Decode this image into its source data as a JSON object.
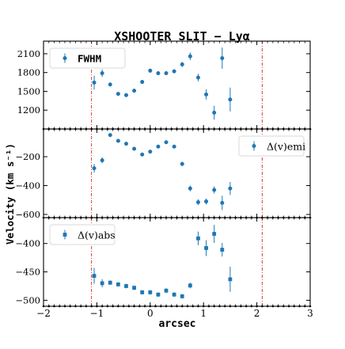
{
  "chart_data": {
    "type": "scatter",
    "title": "XSHOOTER SLIT − Lyα",
    "xlabel": "arcsec",
    "ylabel": "Velocity (km s⁻¹)",
    "xlim": [
      -2,
      3
    ],
    "xticks": [
      -2,
      -1,
      0,
      1,
      2,
      3
    ],
    "xtick_labels": [
      "−2",
      "−1",
      "0",
      "1",
      "2",
      "3"
    ],
    "vlines": [
      -1.1,
      2.1
    ],
    "colors": {
      "marker": "#1f77b4",
      "vline": "#d62728"
    },
    "panels": [
      {
        "legend": "FWHM",
        "legend_position": "top-left",
        "marker": "circle",
        "ylim": [
          950,
          2200
        ],
        "yticks": [
          1200,
          1500,
          1800,
          2100
        ],
        "ytick_labels": [
          "1200",
          "1500",
          "1800",
          "2100"
        ],
        "points": [
          {
            "x": -1.05,
            "y": 1640,
            "err": 110
          },
          {
            "x": -0.9,
            "y": 1790,
            "err": 60
          },
          {
            "x": -0.75,
            "y": 1610,
            "err": 30
          },
          {
            "x": -0.6,
            "y": 1460,
            "err": 30
          },
          {
            "x": -0.45,
            "y": 1440,
            "err": 30
          },
          {
            "x": -0.3,
            "y": 1510,
            "err": 30
          },
          {
            "x": -0.15,
            "y": 1650,
            "err": 30
          },
          {
            "x": 0.0,
            "y": 1830,
            "err": 30
          },
          {
            "x": 0.15,
            "y": 1790,
            "err": 30
          },
          {
            "x": 0.3,
            "y": 1790,
            "err": 30
          },
          {
            "x": 0.45,
            "y": 1820,
            "err": 30
          },
          {
            "x": 0.6,
            "y": 1930,
            "err": 40
          },
          {
            "x": 0.75,
            "y": 2060,
            "err": 60
          },
          {
            "x": 0.9,
            "y": 1720,
            "err": 60
          },
          {
            "x": 1.05,
            "y": 1450,
            "err": 80
          },
          {
            "x": 1.2,
            "y": 1160,
            "err": 110
          },
          {
            "x": 1.35,
            "y": 2030,
            "err": 170
          },
          {
            "x": 1.5,
            "y": 1370,
            "err": 190
          }
        ]
      },
      {
        "legend": "Δ(v)emi",
        "legend_position": "top-right",
        "marker": "circle",
        "ylim": [
          -600,
          -30
        ],
        "yticks": [
          -600,
          -400,
          -200
        ],
        "ytick_labels": [
          "−600",
          "−400",
          "−200"
        ],
        "points": [
          {
            "x": -1.05,
            "y": -280,
            "err": 30
          },
          {
            "x": -0.9,
            "y": -225,
            "err": 20
          },
          {
            "x": -0.75,
            "y": -50,
            "err": 12
          },
          {
            "x": -0.6,
            "y": -90,
            "err": 12
          },
          {
            "x": -0.45,
            "y": -110,
            "err": 12
          },
          {
            "x": -0.3,
            "y": -145,
            "err": 12
          },
          {
            "x": -0.15,
            "y": -185,
            "err": 12
          },
          {
            "x": 0.0,
            "y": -165,
            "err": 12
          },
          {
            "x": 0.15,
            "y": -130,
            "err": 12
          },
          {
            "x": 0.3,
            "y": -100,
            "err": 12
          },
          {
            "x": 0.45,
            "y": -130,
            "err": 12
          },
          {
            "x": 0.6,
            "y": -250,
            "err": 15
          },
          {
            "x": 0.75,
            "y": -420,
            "err": 20
          },
          {
            "x": 0.9,
            "y": -515,
            "err": 20
          },
          {
            "x": 1.05,
            "y": -510,
            "err": 20
          },
          {
            "x": 1.2,
            "y": -430,
            "err": 25
          },
          {
            "x": 1.35,
            "y": -520,
            "err": 50
          },
          {
            "x": 1.5,
            "y": -420,
            "err": 45
          }
        ]
      },
      {
        "legend": "Δ(v)abs",
        "legend_position": "top-left",
        "marker": "square",
        "ylim": [
          -505,
          -360
        ],
        "yticks": [
          -500,
          -450,
          -400
        ],
        "ytick_labels": [
          "−500",
          "−450",
          "−400"
        ],
        "points": [
          {
            "x": -1.05,
            "y": -457,
            "err": 14
          },
          {
            "x": -0.9,
            "y": -470,
            "err": 7
          },
          {
            "x": -0.75,
            "y": -469,
            "err": 4
          },
          {
            "x": -0.6,
            "y": -472,
            "err": 4
          },
          {
            "x": -0.45,
            "y": -475,
            "err": 4
          },
          {
            "x": -0.3,
            "y": -478,
            "err": 4
          },
          {
            "x": -0.15,
            "y": -486,
            "err": 4
          },
          {
            "x": 0.0,
            "y": -486,
            "err": 4
          },
          {
            "x": 0.15,
            "y": -490,
            "err": 4
          },
          {
            "x": 0.3,
            "y": -483,
            "err": 4
          },
          {
            "x": 0.45,
            "y": -490,
            "err": 4
          },
          {
            "x": 0.6,
            "y": -493,
            "err": 4
          },
          {
            "x": 0.75,
            "y": -474,
            "err": 5
          },
          {
            "x": 0.9,
            "y": -391,
            "err": 12
          },
          {
            "x": 1.05,
            "y": -408,
            "err": 14
          },
          {
            "x": 1.2,
            "y": -383,
            "err": 16
          },
          {
            "x": 1.35,
            "y": -411,
            "err": 12
          },
          {
            "x": 1.5,
            "y": -463,
            "err": 22
          }
        ]
      }
    ]
  }
}
